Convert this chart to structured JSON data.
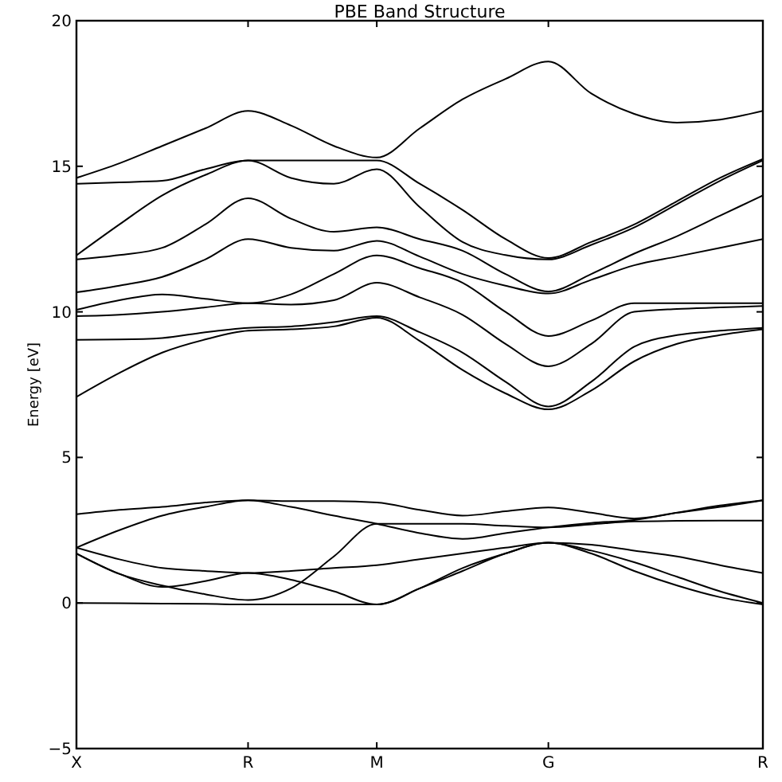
{
  "chart_data": {
    "type": "line",
    "title": "PBE Band Structure",
    "ylabel": "Energy [eV]",
    "categories": [
      "X",
      null,
      null,
      null,
      "R",
      null,
      null,
      "M",
      null,
      null,
      null,
      "G",
      null,
      null,
      null,
      null,
      "R"
    ],
    "ylim": [
      -5,
      20
    ],
    "yticks": [
      {
        "value": -5,
        "label": "−5"
      },
      0,
      5,
      10,
      15,
      20
    ],
    "marker": "none",
    "line_style": "solid",
    "series": [
      {
        "color": "#000000",
        "values": [
          0,
          -0.01,
          -0.02,
          -0.03,
          -0.05,
          -0.05,
          -0.05,
          -0.05,
          0.5,
          1.2,
          1.7,
          2.07,
          1.7,
          1.1,
          0.6,
          0.2,
          -0.05
        ]
      },
      {
        "color": "#000000",
        "values": [
          1.7,
          1.0,
          0.55,
          0.75,
          1.03,
          0.8,
          0.4,
          -0.05,
          0.5,
          1.1,
          1.7,
          2.07,
          1.8,
          1.4,
          0.9,
          0.4,
          0
        ]
      },
      {
        "color": "#000000",
        "values": [
          1.7,
          1.0,
          0.6,
          0.3,
          0.1,
          0.5,
          1.6,
          2.72,
          2.72,
          2.72,
          2.65,
          2.6,
          2.7,
          2.8,
          2.82,
          2.83,
          2.83
        ]
      },
      {
        "color": "#000000",
        "values": [
          1.9,
          1.5,
          1.2,
          1.1,
          1.03,
          1.1,
          1.2,
          1.3,
          1.5,
          1.7,
          1.9,
          2.07,
          2.0,
          1.8,
          1.6,
          1.3,
          1.03
        ]
      },
      {
        "color": "#000000",
        "values": [
          1.9,
          2.5,
          3.0,
          3.3,
          3.53,
          3.3,
          3.0,
          2.72,
          2.4,
          2.2,
          2.4,
          2.6,
          2.75,
          2.85,
          3.1,
          3.35,
          3.53
        ]
      },
      {
        "color": "#000000",
        "values": [
          3.05,
          3.2,
          3.3,
          3.45,
          3.53,
          3.5,
          3.5,
          3.45,
          3.2,
          3.0,
          3.15,
          3.28,
          3.1,
          2.9,
          3.1,
          3.3,
          3.53
        ]
      },
      {
        "color": "#000000",
        "values": [
          7.08,
          7.9,
          8.6,
          9.05,
          9.35,
          9.4,
          9.5,
          9.8,
          9.0,
          8.0,
          7.2,
          6.65,
          7.3,
          8.3,
          8.9,
          9.2,
          9.4
        ]
      },
      {
        "color": "#000000",
        "values": [
          9.04,
          9.05,
          9.1,
          9.3,
          9.45,
          9.5,
          9.65,
          9.85,
          9.3,
          8.6,
          7.6,
          6.75,
          7.6,
          8.8,
          9.2,
          9.35,
          9.45
        ]
      },
      {
        "color": "#000000",
        "values": [
          9.85,
          9.9,
          10.0,
          10.15,
          10.3,
          10.25,
          10.4,
          11.0,
          10.5,
          9.9,
          8.9,
          8.13,
          8.9,
          10.0,
          10.1,
          10.15,
          10.2
        ]
      },
      {
        "color": "#000000",
        "values": [
          10.07,
          10.4,
          10.6,
          10.45,
          10.3,
          10.6,
          11.3,
          11.94,
          11.5,
          11.0,
          10.0,
          9.17,
          9.7,
          10.3,
          10.3,
          10.3,
          10.3
        ]
      },
      {
        "color": "#000000",
        "values": [
          10.67,
          10.9,
          11.2,
          11.8,
          12.5,
          12.2,
          12.1,
          12.44,
          11.9,
          11.3,
          10.9,
          10.63,
          11.1,
          11.6,
          11.9,
          12.2,
          12.5
        ]
      },
      {
        "color": "#000000",
        "values": [
          11.8,
          11.95,
          12.2,
          13.0,
          13.9,
          13.2,
          12.75,
          12.9,
          12.5,
          12.1,
          11.3,
          10.7,
          11.3,
          12.0,
          12.6,
          13.3,
          14.0
        ]
      },
      {
        "color": "#000000",
        "values": [
          11.94,
          13.0,
          14.0,
          14.7,
          15.2,
          14.6,
          14.4,
          14.9,
          13.6,
          12.4,
          11.95,
          11.8,
          12.3,
          12.9,
          13.7,
          14.5,
          15.2
        ]
      },
      {
        "color": "#000000",
        "values": [
          14.4,
          14.45,
          14.5,
          14.9,
          15.2,
          15.2,
          15.2,
          15.2,
          14.4,
          13.5,
          12.5,
          11.85,
          12.4,
          13.0,
          13.8,
          14.6,
          15.25
        ]
      },
      {
        "color": "#000000",
        "values": [
          14.6,
          15.1,
          15.7,
          16.3,
          16.9,
          16.4,
          15.7,
          15.3,
          16.3,
          17.3,
          18.0,
          18.6,
          17.5,
          16.8,
          16.5,
          16.6,
          16.9
        ]
      }
    ]
  }
}
